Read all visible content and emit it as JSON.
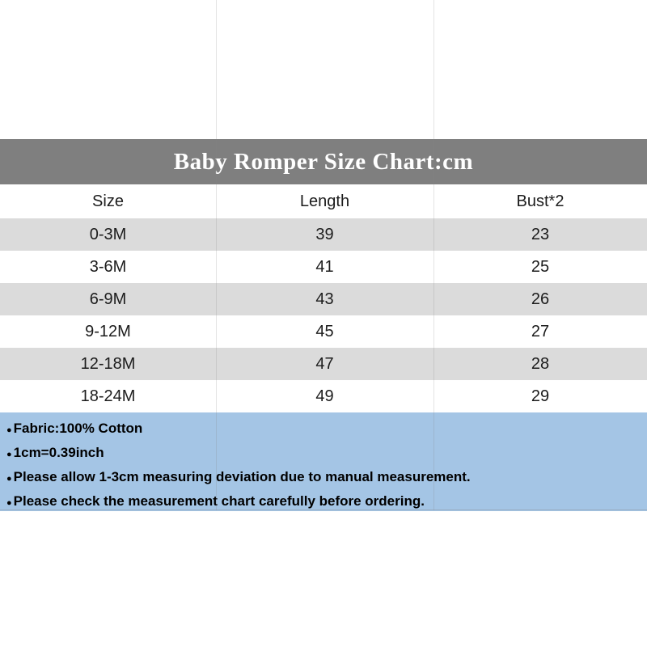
{
  "title": "Baby Romper Size Chart:cm",
  "chart_data": {
    "type": "table",
    "title": "Baby Romper Size Chart:cm",
    "unit": "cm",
    "columns": [
      "Size",
      "Length",
      "Bust*2"
    ],
    "rows": [
      [
        "0-3M",
        39,
        23
      ],
      [
        "3-6M",
        41,
        25
      ],
      [
        "6-9M",
        43,
        26
      ],
      [
        "9-12M",
        45,
        27
      ],
      [
        "12-18M",
        47,
        28
      ],
      [
        "18-24M",
        49,
        29
      ]
    ]
  },
  "notes": {
    "bullet": "●",
    "items": [
      "Fabric:100% Cotton",
      "1cm=0.39inch",
      "Please allow 1-3cm measuring deviation due to manual measurement.",
      "Please check the measurement chart carefully before ordering."
    ]
  },
  "colors": {
    "page_bg": "#ffffff",
    "title_band": "#7f7f7f",
    "title_text": "#ffffff",
    "row_alt": "#dbdbdb",
    "row_white": "#ffffff",
    "notes_bg": "#a4c5e5",
    "text": "#1c1c1c"
  }
}
